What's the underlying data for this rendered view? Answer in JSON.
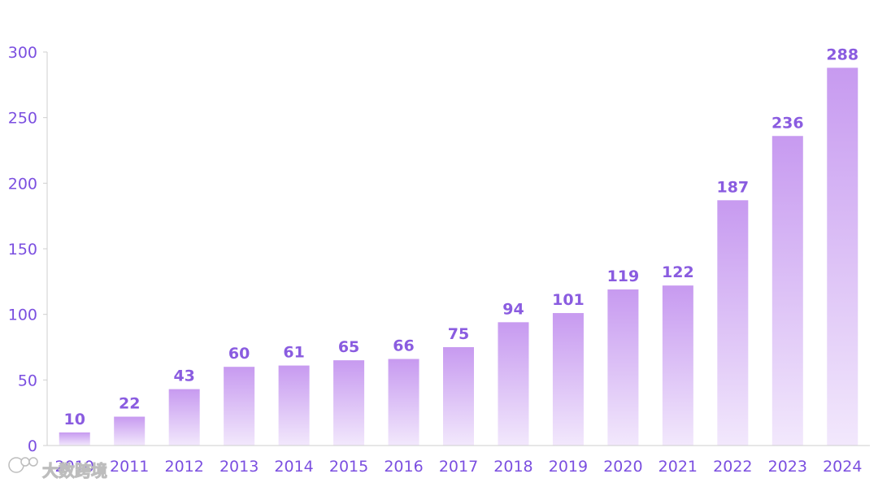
{
  "chart_data": {
    "type": "bar",
    "title": "",
    "xlabel": "",
    "ylabel": "",
    "categories": [
      "2010",
      "2011",
      "2012",
      "2013",
      "2014",
      "2015",
      "2016",
      "2017",
      "2018",
      "2019",
      "2020",
      "2021",
      "2022",
      "2023",
      "2024"
    ],
    "values": [
      10,
      22,
      43,
      60,
      61,
      65,
      66,
      75,
      94,
      101,
      119,
      122,
      187,
      236,
      288
    ],
    "ylim": [
      0,
      300
    ],
    "yticks": [
      0,
      50,
      100,
      150,
      200,
      250,
      300
    ],
    "data_labels": true,
    "grid": false,
    "legend": "none",
    "colors": {
      "bar_top": "#c79af0",
      "bar_bottom": "#f2e8fc",
      "text": "#7b4fe0",
      "data_label": "#8a5ce0",
      "axis": "#cfcfcf"
    }
  },
  "watermark": {
    "text": "大数跨境",
    "icon": "logo-icon"
  }
}
